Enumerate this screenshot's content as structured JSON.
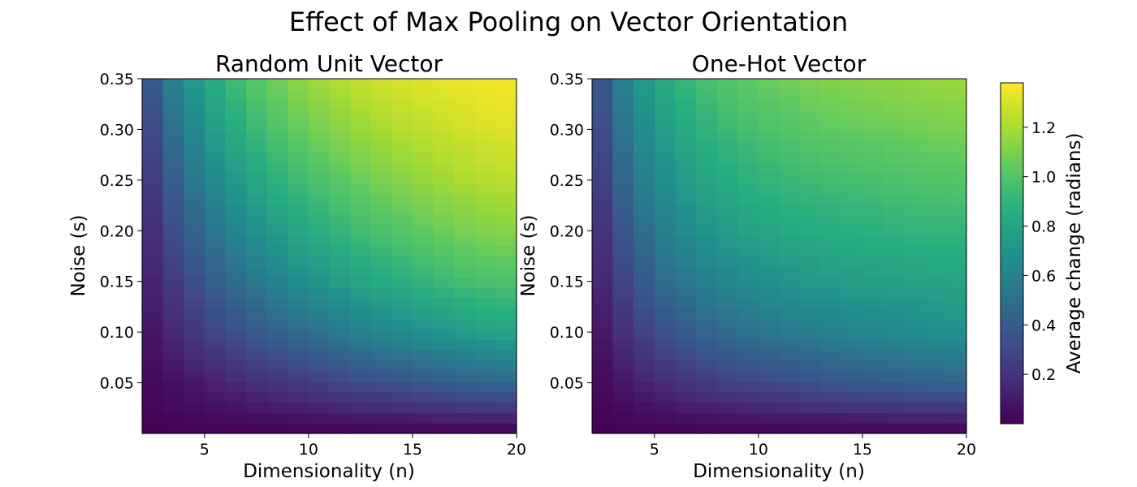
{
  "chart_data": {
    "suptitle": "Effect of Max Pooling on Vector Orientation",
    "colormap": "viridis",
    "colorbar": {
      "label": "Average change (radians)",
      "range": [
        0.0,
        1.38
      ],
      "ticks": [
        0.2,
        0.4,
        0.6,
        0.8,
        1.0,
        1.2
      ],
      "tick_labels": [
        "0.2",
        "0.4",
        "0.6",
        "0.8",
        "1.0",
        "1.2"
      ]
    },
    "panels": [
      {
        "type": "heatmap",
        "title": "Random Unit Vector",
        "xlabel": "Dimensionality (n)",
        "ylabel": "Noise (s)",
        "xlim": [
          2,
          20
        ],
        "ylim": [
          0.0,
          0.35
        ],
        "xticks": [
          5,
          10,
          15,
          20
        ],
        "xtick_labels": [
          "5",
          "10",
          "15",
          "20"
        ],
        "yticks": [
          0.05,
          0.1,
          0.15,
          0.2,
          0.25,
          0.3,
          0.35
        ],
        "ytick_labels": [
          "0.05",
          "0.10",
          "0.15",
          "0.20",
          "0.25",
          "0.30",
          "0.35"
        ],
        "x": [
          2,
          3,
          4,
          5,
          6,
          7,
          8,
          9,
          10,
          11,
          12,
          13,
          14,
          15,
          16,
          17,
          18,
          19
        ],
        "y": [
          0.0,
          0.05,
          0.1,
          0.15,
          0.2,
          0.25,
          0.3,
          0.35
        ],
        "values": [
          [
            0.0,
            0.0,
            0.0,
            0.0,
            0.0,
            0.0,
            0.0,
            0.0,
            0.0,
            0.0,
            0.0,
            0.0,
            0.0,
            0.0,
            0.0,
            0.0,
            0.0,
            0.0
          ],
          [
            0.02,
            0.05,
            0.08,
            0.11,
            0.14,
            0.17,
            0.19,
            0.22,
            0.24,
            0.27,
            0.3,
            0.32,
            0.34,
            0.36,
            0.39,
            0.41,
            0.43,
            0.45
          ],
          [
            0.05,
            0.12,
            0.19,
            0.25,
            0.31,
            0.36,
            0.41,
            0.46,
            0.5,
            0.54,
            0.58,
            0.62,
            0.65,
            0.68,
            0.71,
            0.74,
            0.77,
            0.8
          ],
          [
            0.08,
            0.19,
            0.28,
            0.37,
            0.45,
            0.52,
            0.58,
            0.64,
            0.69,
            0.74,
            0.78,
            0.82,
            0.85,
            0.88,
            0.91,
            0.94,
            0.96,
            0.98
          ],
          [
            0.11,
            0.26,
            0.38,
            0.49,
            0.58,
            0.66,
            0.73,
            0.79,
            0.84,
            0.88,
            0.92,
            0.96,
            0.99,
            1.02,
            1.05,
            1.08,
            1.1,
            1.12
          ],
          [
            0.15,
            0.33,
            0.48,
            0.6,
            0.7,
            0.78,
            0.85,
            0.91,
            0.96,
            1.0,
            1.04,
            1.08,
            1.11,
            1.14,
            1.17,
            1.19,
            1.21,
            1.23
          ],
          [
            0.2,
            0.42,
            0.58,
            0.71,
            0.81,
            0.89,
            0.96,
            1.02,
            1.07,
            1.11,
            1.15,
            1.18,
            1.21,
            1.23,
            1.25,
            1.27,
            1.29,
            1.31
          ],
          [
            0.27,
            0.52,
            0.68,
            0.8,
            0.9,
            0.98,
            1.05,
            1.11,
            1.16,
            1.2,
            1.24,
            1.27,
            1.29,
            1.31,
            1.33,
            1.34,
            1.35,
            1.36
          ]
        ]
      },
      {
        "type": "heatmap",
        "title": "One-Hot Vector",
        "xlabel": "Dimensionality (n)",
        "ylabel": "Noise (s)",
        "xlim": [
          2,
          20
        ],
        "ylim": [
          0.0,
          0.35
        ],
        "xticks": [
          5,
          10,
          15,
          20
        ],
        "xtick_labels": [
          "5",
          "10",
          "15",
          "20"
        ],
        "yticks": [
          0.05,
          0.1,
          0.15,
          0.2,
          0.25,
          0.3,
          0.35
        ],
        "ytick_labels": [
          "0.05",
          "0.10",
          "0.15",
          "0.20",
          "0.25",
          "0.30",
          "0.35"
        ],
        "x": [
          2,
          3,
          4,
          5,
          6,
          7,
          8,
          9,
          10,
          11,
          12,
          13,
          14,
          15,
          16,
          17,
          18,
          19
        ],
        "y": [
          0.0,
          0.05,
          0.1,
          0.15,
          0.2,
          0.25,
          0.3,
          0.35
        ],
        "values": [
          [
            0.0,
            0.0,
            0.0,
            0.0,
            0.0,
            0.0,
            0.0,
            0.0,
            0.0,
            0.0,
            0.0,
            0.0,
            0.0,
            0.0,
            0.0,
            0.0,
            0.0,
            0.0
          ],
          [
            0.02,
            0.06,
            0.11,
            0.15,
            0.19,
            0.22,
            0.25,
            0.27,
            0.29,
            0.31,
            0.33,
            0.35,
            0.37,
            0.39,
            0.4,
            0.42,
            0.43,
            0.44
          ],
          [
            0.05,
            0.14,
            0.23,
            0.31,
            0.37,
            0.42,
            0.46,
            0.5,
            0.53,
            0.55,
            0.57,
            0.59,
            0.61,
            0.63,
            0.64,
            0.66,
            0.67,
            0.68
          ],
          [
            0.08,
            0.22,
            0.34,
            0.44,
            0.51,
            0.57,
            0.61,
            0.65,
            0.68,
            0.7,
            0.72,
            0.74,
            0.75,
            0.76,
            0.77,
            0.78,
            0.79,
            0.8
          ],
          [
            0.11,
            0.29,
            0.44,
            0.55,
            0.63,
            0.69,
            0.73,
            0.77,
            0.8,
            0.82,
            0.84,
            0.85,
            0.86,
            0.87,
            0.88,
            0.89,
            0.9,
            0.9
          ],
          [
            0.15,
            0.37,
            0.53,
            0.64,
            0.72,
            0.78,
            0.82,
            0.86,
            0.89,
            0.91,
            0.93,
            0.94,
            0.95,
            0.96,
            0.97,
            0.98,
            0.99,
            1.0
          ],
          [
            0.2,
            0.45,
            0.61,
            0.72,
            0.8,
            0.86,
            0.91,
            0.94,
            0.97,
            0.99,
            1.01,
            1.03,
            1.04,
            1.05,
            1.06,
            1.07,
            1.08,
            1.09
          ],
          [
            0.25,
            0.52,
            0.69,
            0.8,
            0.88,
            0.94,
            0.99,
            1.02,
            1.05,
            1.07,
            1.09,
            1.11,
            1.12,
            1.13,
            1.14,
            1.15,
            1.16,
            1.17
          ]
        ]
      }
    ]
  }
}
